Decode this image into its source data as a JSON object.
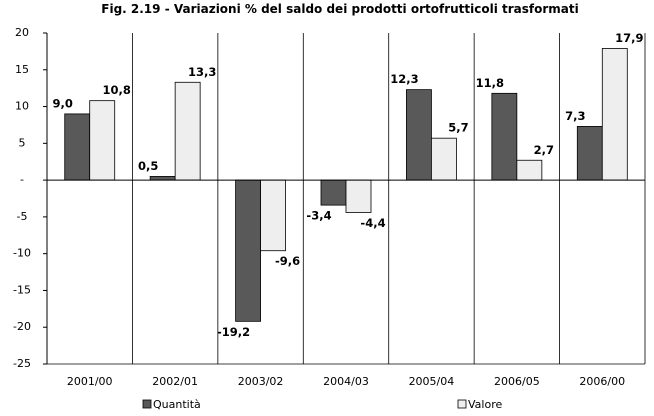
{
  "chart_data": {
    "type": "bar",
    "title": "Fig. 2.19 - Variazioni % del saldo dei prodotti ortofrutticoli trasformati",
    "categories": [
      "2001/00",
      "2002/01",
      "2003/02",
      "2004/03",
      "2005/04",
      "2006/05",
      "2006/00"
    ],
    "series": [
      {
        "name": "Quantità",
        "color": "#595959",
        "values": [
          9.0,
          0.5,
          -19.2,
          -3.4,
          12.3,
          11.8,
          7.3
        ],
        "value_labels": [
          "9,0",
          "0,5",
          "-19,2",
          "-3,4",
          "12,3",
          "11,8",
          "7,3"
        ]
      },
      {
        "name": "Valore",
        "color": "#eeeeee",
        "values": [
          10.8,
          13.3,
          -9.6,
          -4.4,
          5.7,
          2.7,
          17.9
        ],
        "value_labels": [
          "10,8",
          "13,3",
          "-9,6",
          "-4,4",
          "5,7",
          "2,7",
          "17,9"
        ]
      }
    ],
    "ylim": [
      -25,
      20
    ],
    "yticks": [
      20,
      15,
      10,
      5,
      {
        "value": 0,
        "label": "-"
      },
      -5,
      -10,
      -15,
      -20,
      -25
    ],
    "legend": "bottom"
  }
}
